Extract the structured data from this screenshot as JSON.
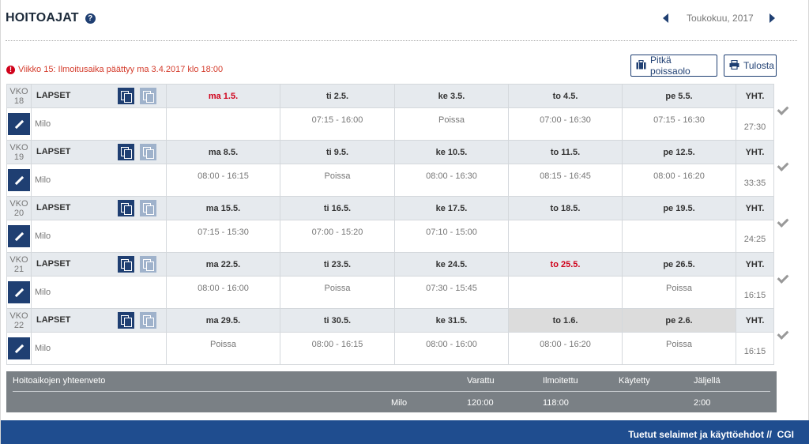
{
  "header": {
    "title": "HOITOAJAT",
    "help_icon": "?"
  },
  "month_nav": {
    "label": "Toukokuu, 2017"
  },
  "notice": {
    "text": "Viikko 15: Ilmoitusaika päättyy ma 3.4.2017 klo 18:00"
  },
  "buttons": {
    "long_absence": "Pitkä poissaolo",
    "print": "Tulosta"
  },
  "children_label": "LAPSET",
  "total_label": "YHT.",
  "weeks": [
    {
      "vko": "VKO",
      "num": "18",
      "days": [
        "ma 1.5.",
        "ti 2.5.",
        "ke 3.5.",
        "to 4.5.",
        "pe 5.5."
      ],
      "child": "Milo",
      "times": [
        "",
        "07:15 - 16:00",
        "Poissa",
        "07:00 - 16:30",
        "07:15 - 16:30"
      ],
      "total": "27:30"
    },
    {
      "vko": "VKO",
      "num": "19",
      "days": [
        "ma 8.5.",
        "ti 9.5.",
        "ke 10.5.",
        "to 11.5.",
        "pe 12.5."
      ],
      "child": "Milo",
      "times": [
        "08:00 - 16:15",
        "Poissa",
        "08:00 - 16:30",
        "08:15 - 16:45",
        "08:00 - 16:20"
      ],
      "total": "33:35"
    },
    {
      "vko": "VKO",
      "num": "20",
      "days": [
        "ma 15.5.",
        "ti 16.5.",
        "ke 17.5.",
        "to 18.5.",
        "pe 19.5."
      ],
      "child": "Milo",
      "times": [
        "07:15 - 15:30",
        "07:00 - 15:20",
        "07:10 - 15:00",
        "",
        ""
      ],
      "total": "24:25"
    },
    {
      "vko": "VKO",
      "num": "21",
      "days": [
        "ma 22.5.",
        "ti 23.5.",
        "ke 24.5.",
        "to 25.5.",
        "pe 26.5."
      ],
      "child": "Milo",
      "times": [
        "08:00 - 16:00",
        "Poissa",
        "07:30 - 15:45",
        "",
        "Poissa"
      ],
      "total": "16:15"
    },
    {
      "vko": "VKO",
      "num": "22",
      "days": [
        "ma 29.5.",
        "ti 30.5.",
        "ke 31.5.",
        "to 1.6.",
        "pe 2.6."
      ],
      "child": "Milo",
      "times": [
        "Poissa",
        "08:00 - 16:15",
        "08:00 - 16:00",
        "08:00 - 16:20",
        "Poissa"
      ],
      "total": "16:15"
    }
  ],
  "summary": {
    "title": "Hoitoaikojen yhteenveto",
    "headers": [
      "Varattu",
      "Ilmoitettu",
      "Käytetty",
      "Jäljellä"
    ],
    "row": {
      "child": "Milo",
      "values": [
        "120:00",
        "118:00",
        "",
        "2:00"
      ]
    }
  },
  "footer": {
    "links": "Tuetut selaimet ja käyttöehdot //  CGI"
  },
  "colors": {
    "accent": "#1f3f72",
    "holiday_red": "#d0021b",
    "footer": "#1f4d8f",
    "summary_bg": "#7a8085"
  }
}
